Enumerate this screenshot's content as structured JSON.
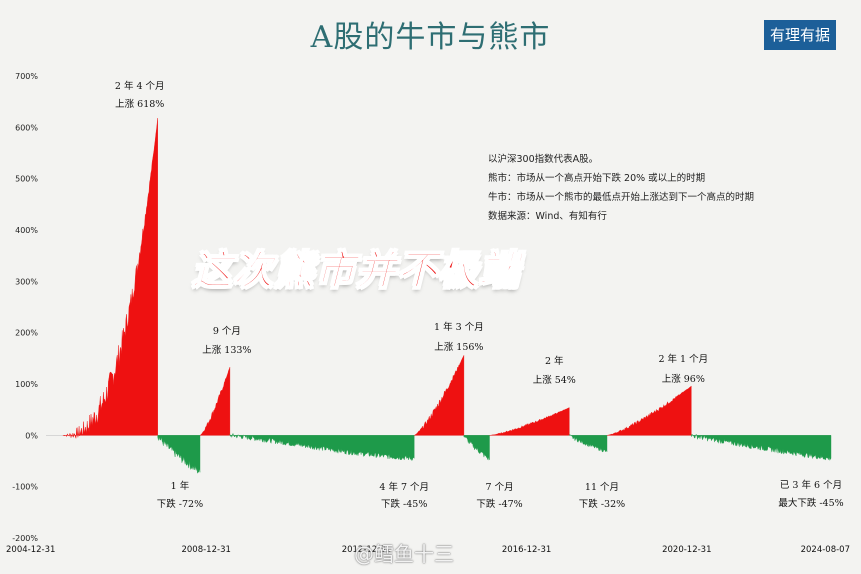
{
  "header": {
    "title": "A股的牛市与熊市",
    "badge": "有理有据"
  },
  "notes": [
    "以沪深300指数代表A股。",
    "熊市：市场从一个高点开始下跌 20% 或以上的时期",
    "牛市：市场从一个熊市的最低点开始上涨达到下一个高点的时期",
    "数据来源：Wind、有知有行"
  ],
  "banner": "这次熊市并不极端",
  "watermark": "@鳕鱼十三",
  "colors": {
    "bull": "#ee1111",
    "bear": "#1e9a4a",
    "title": "#2e6e73",
    "badge": "#1c5f99"
  },
  "chart_data": {
    "type": "area",
    "ylim": [
      -200,
      700
    ],
    "yticks": [
      {
        "value": 700,
        "label": "700%"
      },
      {
        "value": 600,
        "label": "600%"
      },
      {
        "value": 500,
        "label": "500%"
      },
      {
        "value": 400,
        "label": "400%"
      },
      {
        "value": 300,
        "label": "300%"
      },
      {
        "value": 200,
        "label": "200%"
      },
      {
        "value": 100,
        "label": "100%"
      },
      {
        "value": 0,
        "label": "0%"
      },
      {
        "value": -100,
        "label": "-100%"
      },
      {
        "value": -200,
        "label": "-200%"
      }
    ],
    "xrange": [
      "2004-12-31",
      "2024-08-07"
    ],
    "xticks": [
      "2004-12-31",
      "2008-12-31",
      "2012-12-31",
      "2016-12-31",
      "2020-12-31",
      "2024-08-07"
    ],
    "periods": [
      {
        "kind": "bull",
        "start": "2005-06-03",
        "end": "2007-10-16",
        "peak": 618,
        "line1": "2 年 4 个月",
        "line2": "上涨 618%"
      },
      {
        "kind": "bear",
        "start": "2007-10-16",
        "end": "2008-11-04",
        "peak": -72,
        "line1": "1 年",
        "line2": "下跌 -72%"
      },
      {
        "kind": "bull",
        "start": "2008-11-04",
        "end": "2009-08-04",
        "peak": 133,
        "line1": "9 个月",
        "line2": "上涨 133%"
      },
      {
        "kind": "bear",
        "start": "2009-08-04",
        "end": "2014-03-12",
        "peak": -45,
        "line1": "4 年 7 个月",
        "line2": "下跌 -45%"
      },
      {
        "kind": "bull",
        "start": "2014-03-12",
        "end": "2015-06-08",
        "peak": 156,
        "line1": "1 年 3 个月",
        "line2": "上涨 156%"
      },
      {
        "kind": "bear",
        "start": "2015-06-08",
        "end": "2016-01-28",
        "peak": -47,
        "line1": "7 个月",
        "line2": "下跌 -47%"
      },
      {
        "kind": "bull",
        "start": "2016-01-28",
        "end": "2018-01-24",
        "peak": 54,
        "line1": "2 年",
        "line2": "上涨 54%"
      },
      {
        "kind": "bear",
        "start": "2018-01-24",
        "end": "2019-01-03",
        "peak": -32,
        "line1": "11 个月",
        "line2": "下跌 -32%"
      },
      {
        "kind": "bull",
        "start": "2019-01-03",
        "end": "2021-02-10",
        "peak": 96,
        "line1": "2 年 1 个月",
        "line2": "上涨 96%"
      },
      {
        "kind": "bear",
        "start": "2021-02-10",
        "end": "2024-08-07",
        "peak": -45,
        "line1": "已 3 年 6 个月",
        "line2": "最大下跌 -45%"
      }
    ]
  }
}
